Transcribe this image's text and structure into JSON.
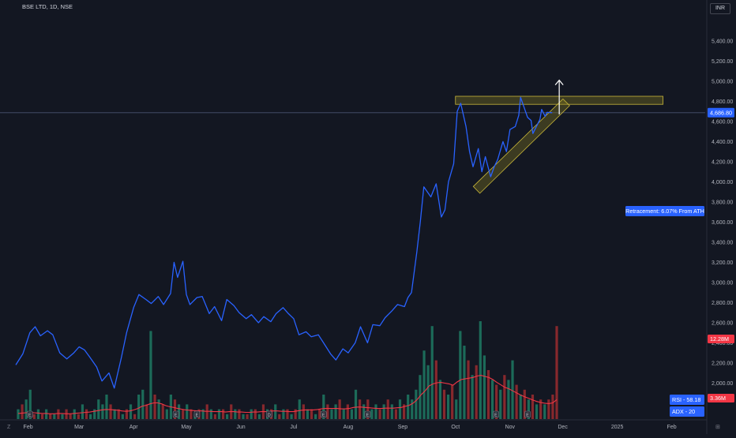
{
  "header": {
    "title": "BSE LTD, 1D, NSE",
    "currency": "INR"
  },
  "corner": {
    "bottom_left": "Z",
    "right_icon": "⊞"
  },
  "colors": {
    "background": "#131722",
    "price_line": "#2962ff",
    "volume_up": "#1f7a63",
    "volume_down": "#9c2b2f",
    "volume_ma": "#f23645",
    "zone_fill": "#8a7d1f",
    "zone_stroke": "#c9b73a",
    "label_blue": "#2962ff",
    "label_red": "#f23645"
  },
  "annotations": {
    "retracement": "Retracement: 6.07% From ATH",
    "rsi": "RSI - 58.18",
    "adx": "ADX - 20",
    "current_price": "4,686.80",
    "volume_current": "12.28M",
    "volume_ma": "3.36M"
  },
  "chart_data": {
    "type": "line",
    "title": "BSE LTD, 1D, NSE",
    "xlabel": "",
    "ylabel": "INR",
    "ylim": [
      1650,
      5650
    ],
    "y_ticks": [
      2000,
      2200,
      2400,
      2600,
      2800,
      3000,
      3200,
      3400,
      3600,
      3800,
      4000,
      4200,
      4400,
      4600,
      4800,
      5000,
      5200,
      5400
    ],
    "y_tick_labels": [
      "2,000.00",
      "2,200.00",
      "2,400.00",
      "2,600.00",
      "2,800.00",
      "3,000.00",
      "3,200.00",
      "3,400.00",
      "3,600.00",
      "3,800.00",
      "4,000.00",
      "4,200.00",
      "4,400.00",
      "4,600.00",
      "4,800.00",
      "5,000.00",
      "5,200.00",
      "5,400.00"
    ],
    "x_range": [
      "2024-01-25",
      "2025-02-20"
    ],
    "x_ticks": [
      {
        "date": "2024-02-01",
        "label": "Feb"
      },
      {
        "date": "2024-03-01",
        "label": "Mar"
      },
      {
        "date": "2024-04-01",
        "label": "Apr"
      },
      {
        "date": "2024-05-01",
        "label": "May"
      },
      {
        "date": "2024-06-01",
        "label": "Jun"
      },
      {
        "date": "2024-07-01",
        "label": "Jul"
      },
      {
        "date": "2024-08-01",
        "label": "Aug"
      },
      {
        "date": "2024-09-01",
        "label": "Sep"
      },
      {
        "date": "2024-10-01",
        "label": "Oct"
      },
      {
        "date": "2024-11-01",
        "label": "Nov"
      },
      {
        "date": "2024-12-01",
        "label": "Dec"
      },
      {
        "date": "2025-01-01",
        "label": "2025"
      },
      {
        "date": "2025-02-01",
        "label": "Feb"
      }
    ],
    "grid": false,
    "series": [
      {
        "values": [
          [
            "2024-01-25",
            2180
          ],
          [
            "2024-01-29",
            2290
          ],
          [
            "2024-02-02",
            2500
          ],
          [
            "2024-02-05",
            2560
          ],
          [
            "2024-02-08",
            2470
          ],
          [
            "2024-02-12",
            2520
          ],
          [
            "2024-02-15",
            2480
          ],
          [
            "2024-02-19",
            2300
          ],
          [
            "2024-02-23",
            2240
          ],
          [
            "2024-02-27",
            2300
          ],
          [
            "2024-03-01",
            2360
          ],
          [
            "2024-03-04",
            2330
          ],
          [
            "2024-03-07",
            2260
          ],
          [
            "2024-03-11",
            2160
          ],
          [
            "2024-03-14",
            2020
          ],
          [
            "2024-03-18",
            2100
          ],
          [
            "2024-03-21",
            1950
          ],
          [
            "2024-03-25",
            2250
          ],
          [
            "2024-03-28",
            2500
          ],
          [
            "2024-04-01",
            2750
          ],
          [
            "2024-04-04",
            2880
          ],
          [
            "2024-04-08",
            2830
          ],
          [
            "2024-04-11",
            2790
          ],
          [
            "2024-04-15",
            2860
          ],
          [
            "2024-04-18",
            2780
          ],
          [
            "2024-04-22",
            2890
          ],
          [
            "2024-04-24",
            3200
          ],
          [
            "2024-04-26",
            3050
          ],
          [
            "2024-04-29",
            3210
          ],
          [
            "2024-05-01",
            2880
          ],
          [
            "2024-05-03",
            2780
          ],
          [
            "2024-05-07",
            2850
          ],
          [
            "2024-05-10",
            2860
          ],
          [
            "2024-05-14",
            2690
          ],
          [
            "2024-05-17",
            2760
          ],
          [
            "2024-05-21",
            2620
          ],
          [
            "2024-05-24",
            2830
          ],
          [
            "2024-05-28",
            2770
          ],
          [
            "2024-05-31",
            2700
          ],
          [
            "2024-06-04",
            2640
          ],
          [
            "2024-06-07",
            2680
          ],
          [
            "2024-06-11",
            2600
          ],
          [
            "2024-06-14",
            2660
          ],
          [
            "2024-06-18",
            2610
          ],
          [
            "2024-06-21",
            2690
          ],
          [
            "2024-06-25",
            2750
          ],
          [
            "2024-06-28",
            2690
          ],
          [
            "2024-07-01",
            2640
          ],
          [
            "2024-07-04",
            2480
          ],
          [
            "2024-07-08",
            2510
          ],
          [
            "2024-07-11",
            2460
          ],
          [
            "2024-07-15",
            2480
          ],
          [
            "2024-07-18",
            2400
          ],
          [
            "2024-07-22",
            2290
          ],
          [
            "2024-07-25",
            2230
          ],
          [
            "2024-07-29",
            2340
          ],
          [
            "2024-08-01",
            2300
          ],
          [
            "2024-08-05",
            2400
          ],
          [
            "2024-08-08",
            2560
          ],
          [
            "2024-08-12",
            2400
          ],
          [
            "2024-08-15",
            2580
          ],
          [
            "2024-08-19",
            2570
          ],
          [
            "2024-08-22",
            2650
          ],
          [
            "2024-08-26",
            2720
          ],
          [
            "2024-08-29",
            2780
          ],
          [
            "2024-09-02",
            2760
          ],
          [
            "2024-09-04",
            2850
          ],
          [
            "2024-09-06",
            2900
          ],
          [
            "2024-09-09",
            3300
          ],
          [
            "2024-09-11",
            3600
          ],
          [
            "2024-09-13",
            3950
          ],
          [
            "2024-09-17",
            3850
          ],
          [
            "2024-09-20",
            3980
          ],
          [
            "2024-09-23",
            3650
          ],
          [
            "2024-09-25",
            3720
          ],
          [
            "2024-09-27",
            4000
          ],
          [
            "2024-09-30",
            4180
          ],
          [
            "2024-10-02",
            4700
          ],
          [
            "2024-10-04",
            4780
          ],
          [
            "2024-10-07",
            4550
          ],
          [
            "2024-10-09",
            4300
          ],
          [
            "2024-10-11",
            4150
          ],
          [
            "2024-10-14",
            4330
          ],
          [
            "2024-10-16",
            4100
          ],
          [
            "2024-10-18",
            4250
          ],
          [
            "2024-10-21",
            4050
          ],
          [
            "2024-10-23",
            4150
          ],
          [
            "2024-10-25",
            4220
          ],
          [
            "2024-10-28",
            4400
          ],
          [
            "2024-10-30",
            4300
          ],
          [
            "2024-11-01",
            4520
          ],
          [
            "2024-11-04",
            4550
          ],
          [
            "2024-11-06",
            4660
          ],
          [
            "2024-11-07",
            4840
          ],
          [
            "2024-11-11",
            4640
          ],
          [
            "2024-11-13",
            4610
          ],
          [
            "2024-11-14",
            4480
          ],
          [
            "2024-11-18",
            4620
          ],
          [
            "2024-11-19",
            4720
          ],
          [
            "2024-11-21",
            4650
          ],
          [
            "2024-11-22",
            4690
          ],
          [
            "2024-11-25",
            4687
          ]
        ]
      }
    ],
    "volume": {
      "current": 12.28,
      "ma": 3.36,
      "bars": [
        [
          2,
          1
        ],
        [
          3,
          0
        ],
        [
          4,
          1
        ],
        [
          6,
          1
        ],
        [
          1,
          0
        ],
        [
          2,
          1
        ],
        [
          1,
          0
        ],
        [
          2,
          1
        ],
        [
          1,
          0
        ],
        [
          1,
          1
        ],
        [
          2,
          0
        ],
        [
          1,
          1
        ],
        [
          2,
          0
        ],
        [
          1,
          0
        ],
        [
          2,
          1
        ],
        [
          1,
          0
        ],
        [
          3,
          1
        ],
        [
          2,
          0
        ],
        [
          1,
          1
        ],
        [
          2,
          1
        ],
        [
          4,
          1
        ],
        [
          3,
          1
        ],
        [
          5,
          1
        ],
        [
          3,
          0
        ],
        [
          2,
          1
        ],
        [
          2,
          0
        ],
        [
          1,
          1
        ],
        [
          2,
          0
        ],
        [
          3,
          1
        ],
        [
          1,
          0
        ],
        [
          5,
          1
        ],
        [
          6,
          1
        ],
        [
          3,
          0
        ],
        [
          18,
          1
        ],
        [
          5,
          0
        ],
        [
          4,
          1
        ],
        [
          3,
          0
        ],
        [
          2,
          1
        ],
        [
          5,
          1
        ],
        [
          4,
          0
        ],
        [
          3,
          1
        ],
        [
          2,
          0
        ],
        [
          3,
          1
        ],
        [
          2,
          0
        ],
        [
          1,
          1
        ],
        [
          2,
          0
        ],
        [
          2,
          1
        ],
        [
          3,
          0
        ],
        [
          2,
          1
        ],
        [
          1,
          0
        ],
        [
          2,
          1
        ],
        [
          2,
          0
        ],
        [
          1,
          1
        ],
        [
          3,
          0
        ],
        [
          2,
          1
        ],
        [
          2,
          0
        ],
        [
          1,
          1
        ],
        [
          1,
          0
        ],
        [
          2,
          1
        ],
        [
          2,
          0
        ],
        [
          1,
          1
        ],
        [
          3,
          0
        ],
        [
          2,
          1
        ],
        [
          2,
          0
        ],
        [
          3,
          1
        ],
        [
          1,
          0
        ],
        [
          2,
          1
        ],
        [
          2,
          0
        ],
        [
          1,
          1
        ],
        [
          2,
          0
        ],
        [
          4,
          1
        ],
        [
          3,
          0
        ],
        [
          2,
          1
        ],
        [
          2,
          0
        ],
        [
          1,
          1
        ],
        [
          2,
          0
        ],
        [
          5,
          1
        ],
        [
          3,
          0
        ],
        [
          2,
          1
        ],
        [
          3,
          1
        ],
        [
          4,
          0
        ],
        [
          2,
          1
        ],
        [
          3,
          0
        ],
        [
          2,
          1
        ],
        [
          6,
          1
        ],
        [
          4,
          0
        ],
        [
          3,
          1
        ],
        [
          4,
          0
        ],
        [
          2,
          1
        ],
        [
          3,
          1
        ],
        [
          2,
          0
        ],
        [
          3,
          1
        ],
        [
          4,
          0
        ],
        [
          3,
          1
        ],
        [
          2,
          0
        ],
        [
          4,
          1
        ],
        [
          3,
          0
        ],
        [
          5,
          1
        ],
        [
          4,
          1
        ],
        [
          6,
          1
        ],
        [
          9,
          1
        ],
        [
          14,
          1
        ],
        [
          11,
          1
        ],
        [
          19,
          1
        ],
        [
          12,
          0
        ],
        [
          8,
          1
        ],
        [
          6,
          0
        ],
        [
          5,
          1
        ],
        [
          7,
          0
        ],
        [
          4,
          1
        ],
        [
          18,
          1
        ],
        [
          15,
          1
        ],
        [
          12,
          0
        ],
        [
          9,
          1
        ],
        [
          11,
          0
        ],
        [
          20,
          1
        ],
        [
          13,
          1
        ],
        [
          10,
          0
        ],
        [
          8,
          1
        ],
        [
          7,
          0
        ],
        [
          6,
          1
        ],
        [
          9,
          0
        ],
        [
          8,
          1
        ],
        [
          12,
          1
        ],
        [
          7,
          0
        ],
        [
          5,
          1
        ],
        [
          6,
          0
        ],
        [
          4,
          1
        ],
        [
          5,
          0
        ],
        [
          3,
          1
        ],
        [
          4,
          0
        ],
        [
          3,
          1
        ],
        [
          4,
          0
        ],
        [
          5,
          0
        ],
        [
          19,
          0
        ]
      ],
      "ma_line": [
        1.6,
        1.7,
        1.8,
        1.9,
        1.8,
        1.7,
        1.6,
        1.6,
        1.5,
        1.5,
        1.6,
        1.6,
        1.5,
        1.5,
        1.6,
        1.7,
        1.8,
        1.9,
        2.0,
        2.2,
        2.4,
        2.6,
        2.7,
        2.7,
        2.6,
        2.5,
        2.3,
        2.2,
        2.3,
        2.6,
        3.0,
        3.6,
        3.9,
        4.3,
        4.6,
        4.6,
        4.3,
        3.8,
        3.5,
        3.3,
        3.0,
        2.8,
        2.6,
        2.5,
        2.4,
        2.3,
        2.3,
        2.2,
        2.2,
        2.1,
        2.1,
        2.1,
        2.0,
        2.1,
        2.1,
        2.0,
        2.0,
        1.9,
        1.9,
        2.0,
        2.0,
        2.1,
        2.1,
        2.2,
        2.3,
        2.3,
        2.2,
        2.2,
        2.1,
        2.1,
        2.3,
        2.5,
        2.6,
        2.6,
        2.6,
        2.7,
        2.9,
        3.0,
        3.0,
        3.0,
        3.0,
        2.9,
        2.9,
        3.0,
        3.3,
        3.4,
        3.4,
        3.3,
        3.2,
        3.1,
        3.0,
        3.0,
        3.1,
        3.1,
        3.1,
        3.2,
        3.3,
        3.6,
        3.9,
        4.5,
        5.5,
        6.9,
        8.0,
        9.4,
        10.0,
        10.3,
        10.4,
        10.2,
        10.0,
        9.6,
        10.5,
        11.2,
        11.4,
        11.6,
        11.8,
        12.2,
        12.4,
        12.1,
        11.8,
        11.2,
        10.4,
        9.7,
        9.0,
        8.6,
        8.0,
        7.4,
        6.8,
        6.3,
        5.9,
        5.4,
        5.0,
        4.7,
        4.5,
        4.4,
        4.6,
        5.5
      ],
      "events": [
        "E",
        "E",
        "E",
        "D",
        "E",
        "E",
        "E",
        "E"
      ],
      "event_dates": [
        "2024-02-02",
        "2024-04-25",
        "2024-05-07",
        "2024-06-17",
        "2024-07-18",
        "2024-08-12",
        "2024-10-24",
        "2024-11-11"
      ]
    },
    "drawings": {
      "resistance_zone": {
        "from": "2024-10-01",
        "to": "2025-01-27",
        "price_low": 4770,
        "price_high": 4850
      },
      "support_channel": {
        "from": "2024-10-13",
        "to": "2024-12-03",
        "price_from": 3920,
        "price_to": 4790
      },
      "arrow": {
        "date": "2024-11-29",
        "price_from": 4670,
        "price_to": 5010
      },
      "current_price_line": 4686.8
    }
  }
}
